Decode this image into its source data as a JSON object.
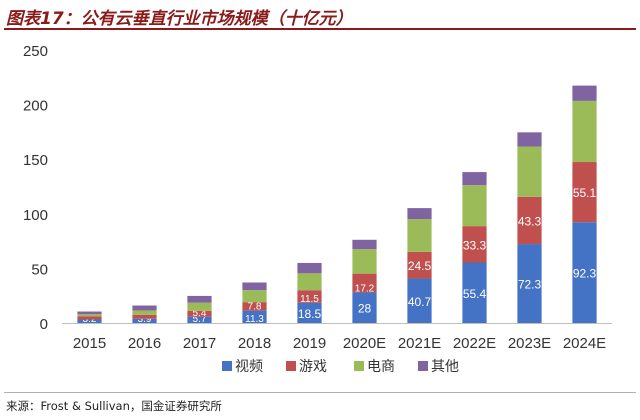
{
  "title": "图表17：公有云垂直行业市场规模（十亿元）",
  "source": "来源：Frost & Sullivan，国金证券研究所",
  "chart_data": {
    "type": "bar",
    "stacked": true,
    "title": "图表17：公有云垂直行业市场规模（十亿元）",
    "xlabel": "",
    "ylabel": "",
    "ylim": [
      0,
      250
    ],
    "yticks": [
      "0",
      "50",
      "100",
      "150",
      "200",
      "250"
    ],
    "grid": false,
    "legend_position": "bottom",
    "categories": [
      "2015",
      "2016",
      "2017",
      "2018",
      "2019",
      "2020E",
      "2021E",
      "2022E",
      "2023E",
      "2024E"
    ],
    "series": [
      {
        "name": "视频",
        "color": "#4472C4",
        "values": [
          3.2,
          3.9,
          5.7,
          11.3,
          18.5,
          28,
          40.7,
          55.4,
          72.3,
          92.3
        ],
        "labels": [
          "3.2",
          "3.9",
          "5.7",
          "11.3",
          "18.5",
          "28",
          "40.7",
          "55.4",
          "72.3",
          "92.3"
        ]
      },
      {
        "name": "游戏",
        "color": "#C0504D",
        "values": [
          2.8,
          3.6,
          5.4,
          7.8,
          11.5,
          17.2,
          24.5,
          33.3,
          43.3,
          55.1
        ],
        "labels": [
          "",
          "",
          "5.4",
          "7.8",
          "11.5",
          "17.2",
          "24.5",
          "33.3",
          "43.3",
          "55.1"
        ]
      },
      {
        "name": "电商",
        "color": "#9BBB59",
        "values": [
          2.0,
          4.0,
          7.5,
          11.0,
          15.5,
          22.5,
          30.0,
          37.5,
          46.0,
          56.0
        ]
      },
      {
        "name": "其他",
        "color": "#8064A2",
        "values": [
          2.5,
          4.5,
          6.2,
          7.0,
          9.5,
          8.5,
          10.0,
          12.0,
          13.0,
          14.0
        ]
      }
    ]
  }
}
